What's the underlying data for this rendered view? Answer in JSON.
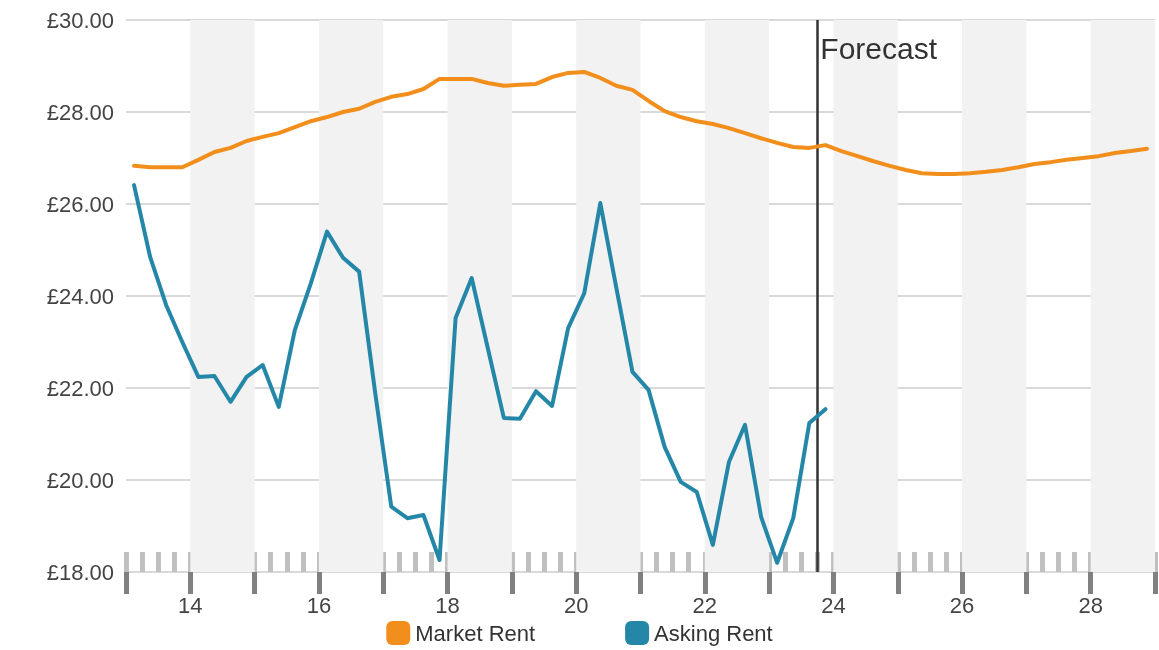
{
  "chart_data": {
    "type": "line",
    "xlim": [
      2013,
      2029
    ],
    "xticks": [
      {
        "value": 2014,
        "label": "14"
      },
      {
        "value": 2016,
        "label": "16"
      },
      {
        "value": 2018,
        "label": "18"
      },
      {
        "value": 2020,
        "label": "20"
      },
      {
        "value": 2022,
        "label": "22"
      },
      {
        "value": 2024,
        "label": "24"
      },
      {
        "value": 2026,
        "label": "26"
      },
      {
        "value": 2028,
        "label": "28"
      }
    ],
    "ylim": [
      18,
      30
    ],
    "yticks": [
      {
        "value": 18,
        "label": "£18.00"
      },
      {
        "value": 20,
        "label": "£20.00"
      },
      {
        "value": 22,
        "label": "£22.00"
      },
      {
        "value": 24,
        "label": "£24.00"
      },
      {
        "value": 26,
        "label": "£26.00"
      },
      {
        "value": 28,
        "label": "£28.00"
      },
      {
        "value": 30,
        "label": "£30.00"
      }
    ],
    "grid": "y",
    "legend": "bottom",
    "marker": "none",
    "line_style": "solid",
    "series": [
      {
        "name": "Market Rent",
        "color": "#f28e1c",
        "x": [
          2013.125,
          2013.375,
          2013.625,
          2013.875,
          2014.125,
          2014.375,
          2014.625,
          2014.875,
          2015.125,
          2015.375,
          2015.625,
          2015.875,
          2016.125,
          2016.375,
          2016.625,
          2016.875,
          2017.125,
          2017.375,
          2017.625,
          2017.875,
          2018.125,
          2018.375,
          2018.625,
          2018.875,
          2019.125,
          2019.375,
          2019.625,
          2019.875,
          2020.125,
          2020.375,
          2020.625,
          2020.875,
          2021.125,
          2021.375,
          2021.625,
          2021.875,
          2022.125,
          2022.375,
          2022.625,
          2022.875,
          2023.125,
          2023.375,
          2023.625,
          2023.875,
          2024.125,
          2024.375,
          2024.625,
          2024.875,
          2025.125,
          2025.375,
          2025.625,
          2025.875,
          2026.125,
          2026.375,
          2026.625,
          2026.875,
          2027.125,
          2027.375,
          2027.625,
          2027.875,
          2028.125,
          2028.375,
          2028.625,
          2028.875
        ],
        "values": [
          26.83,
          26.8,
          26.8,
          26.8,
          26.96,
          27.13,
          27.22,
          27.37,
          27.46,
          27.54,
          27.67,
          27.8,
          27.89,
          28.0,
          28.07,
          28.22,
          28.33,
          28.39,
          28.5,
          28.72,
          28.72,
          28.72,
          28.63,
          28.57,
          28.59,
          28.61,
          28.76,
          28.85,
          28.87,
          28.74,
          28.57,
          28.48,
          28.24,
          28.02,
          27.89,
          27.8,
          27.74,
          27.65,
          27.54,
          27.43,
          27.33,
          27.24,
          27.22,
          27.28,
          27.15,
          27.04,
          26.93,
          26.83,
          26.74,
          26.67,
          26.65,
          26.65,
          26.67,
          26.7,
          26.74,
          26.8,
          26.87,
          26.91,
          26.96,
          27.0,
          27.04,
          27.11,
          27.15,
          27.2
        ]
      },
      {
        "name": "Asking Rent",
        "color": "#2587a8",
        "x": [
          2013.125,
          2013.375,
          2013.625,
          2013.875,
          2014.125,
          2014.375,
          2014.625,
          2014.875,
          2015.125,
          2015.375,
          2015.625,
          2015.875,
          2016.125,
          2016.375,
          2016.625,
          2016.875,
          2017.125,
          2017.375,
          2017.625,
          2017.875,
          2018.125,
          2018.375,
          2018.625,
          2018.875,
          2019.125,
          2019.375,
          2019.625,
          2019.875,
          2020.125,
          2020.375,
          2020.625,
          2020.875,
          2021.125,
          2021.375,
          2021.625,
          2021.875,
          2022.125,
          2022.375,
          2022.625,
          2022.875,
          2023.125,
          2023.375,
          2023.625,
          2023.875
        ],
        "values": [
          26.41,
          24.85,
          23.8,
          23.0,
          22.24,
          22.26,
          21.7,
          22.24,
          22.5,
          21.59,
          23.26,
          24.28,
          25.4,
          24.83,
          24.53,
          21.89,
          19.42,
          19.17,
          19.24,
          18.26,
          23.52,
          24.39,
          22.87,
          21.35,
          21.33,
          21.93,
          21.61,
          23.3,
          24.06,
          26.02,
          24.17,
          22.35,
          21.96,
          20.72,
          19.96,
          19.74,
          18.59,
          20.39,
          21.2,
          19.2,
          18.2,
          19.17,
          21.24,
          21.54
        ]
      }
    ],
    "ref_lines": [
      {
        "axis": "x",
        "value": 2023.75,
        "label": "Forecast",
        "color": "#333333"
      }
    ],
    "bands": [
      {
        "axis": "x",
        "from": 2014,
        "to": 2015,
        "color": "#f2f2f2"
      },
      {
        "axis": "x",
        "from": 2016,
        "to": 2017,
        "color": "#f2f2f2"
      },
      {
        "axis": "x",
        "from": 2018,
        "to": 2019,
        "color": "#f2f2f2"
      },
      {
        "axis": "x",
        "from": 2020,
        "to": 2021,
        "color": "#f2f2f2"
      },
      {
        "axis": "x",
        "from": 2022,
        "to": 2023,
        "color": "#f2f2f2"
      },
      {
        "axis": "x",
        "from": 2024,
        "to": 2025,
        "color": "#f2f2f2"
      },
      {
        "axis": "x",
        "from": 2026,
        "to": 2027,
        "color": "#f2f2f2"
      },
      {
        "axis": "x",
        "from": 2028,
        "to": 2029,
        "color": "#f2f2f2"
      }
    ]
  }
}
